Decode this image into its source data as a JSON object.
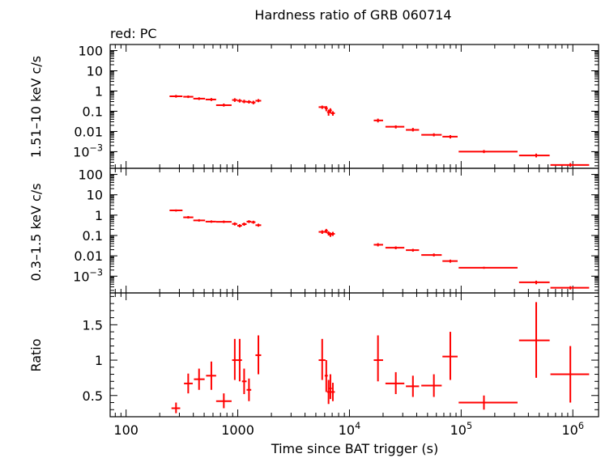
{
  "chart_data": {
    "type": "scatter",
    "title": "Hardness ratio of GRB 060714",
    "subtitle": "red: PC",
    "xlabel": "Time since BAT trigger (s)",
    "xscale": "log",
    "xlim": [
      72,
      1700000
    ],
    "x_ticks": [
      {
        "v": 100,
        "label": "100"
      },
      {
        "v": 1000,
        "label": "1000"
      },
      {
        "v": 10000,
        "label": "10",
        "exp": "4"
      },
      {
        "v": 100000,
        "label": "10",
        "exp": "5"
      },
      {
        "v": 1000000,
        "label": "10",
        "exp": "6"
      }
    ],
    "color": "#ff0000",
    "panels": [
      {
        "ylabel": "1.51–10 keV c/s",
        "yscale": "log",
        "ylim": [
          0.00015,
          200
        ],
        "y_ticks": [
          {
            "v": 100,
            "label": "100"
          },
          {
            "v": 10,
            "label": "10"
          },
          {
            "v": 1,
            "label": "1"
          },
          {
            "v": 0.1,
            "label": "0.1"
          },
          {
            "v": 0.01,
            "label": "0.01"
          },
          {
            "v": 0.001,
            "label": "10",
            "exp": "−3"
          }
        ],
        "points": [
          {
            "x": 280,
            "xlo": 245,
            "xhi": 320,
            "y": 0.55,
            "ylo": 0.47,
            "yhi": 0.64
          },
          {
            "x": 360,
            "xlo": 325,
            "xhi": 400,
            "y": 0.52,
            "ylo": 0.45,
            "yhi": 0.6
          },
          {
            "x": 450,
            "xlo": 400,
            "xhi": 510,
            "y": 0.42,
            "ylo": 0.36,
            "yhi": 0.49
          },
          {
            "x": 580,
            "xlo": 515,
            "xhi": 640,
            "y": 0.38,
            "ylo": 0.32,
            "yhi": 0.45
          },
          {
            "x": 750,
            "xlo": 640,
            "xhi": 880,
            "y": 0.2,
            "ylo": 0.17,
            "yhi": 0.24
          },
          {
            "x": 940,
            "xlo": 890,
            "xhi": 990,
            "y": 0.36,
            "ylo": 0.29,
            "yhi": 0.44
          },
          {
            "x": 1040,
            "xlo": 990,
            "xhi": 1090,
            "y": 0.33,
            "ylo": 0.27,
            "yhi": 0.4
          },
          {
            "x": 1140,
            "xlo": 1090,
            "xhi": 1200,
            "y": 0.3,
            "ylo": 0.25,
            "yhi": 0.37
          },
          {
            "x": 1260,
            "xlo": 1200,
            "xhi": 1320,
            "y": 0.29,
            "ylo": 0.24,
            "yhi": 0.35
          },
          {
            "x": 1380,
            "xlo": 1320,
            "xhi": 1440,
            "y": 0.27,
            "ylo": 0.22,
            "yhi": 0.33
          },
          {
            "x": 1530,
            "xlo": 1440,
            "xhi": 1620,
            "y": 0.33,
            "ylo": 0.28,
            "yhi": 0.4
          },
          {
            "x": 5700,
            "xlo": 5300,
            "xhi": 6100,
            "y": 0.16,
            "ylo": 0.13,
            "yhi": 0.19
          },
          {
            "x": 6200,
            "xlo": 6000,
            "xhi": 6400,
            "y": 0.14,
            "ylo": 0.1,
            "yhi": 0.18
          },
          {
            "x": 6500,
            "xlo": 6300,
            "xhi": 6700,
            "y": 0.09,
            "ylo": 0.06,
            "yhi": 0.12
          },
          {
            "x": 6750,
            "xlo": 6550,
            "xhi": 6950,
            "y": 0.11,
            "ylo": 0.08,
            "yhi": 0.14
          },
          {
            "x": 7100,
            "xlo": 6800,
            "xhi": 7400,
            "y": 0.08,
            "ylo": 0.06,
            "yhi": 0.1
          },
          {
            "x": 18000,
            "xlo": 16500,
            "xhi": 20000,
            "y": 0.035,
            "ylo": 0.028,
            "yhi": 0.043
          },
          {
            "x": 26000,
            "xlo": 21000,
            "xhi": 31000,
            "y": 0.017,
            "ylo": 0.014,
            "yhi": 0.02
          },
          {
            "x": 37000,
            "xlo": 32000,
            "xhi": 42000,
            "y": 0.012,
            "ylo": 0.01,
            "yhi": 0.015
          },
          {
            "x": 57000,
            "xlo": 44000,
            "xhi": 67000,
            "y": 0.0068,
            "ylo": 0.0057,
            "yhi": 0.0081
          },
          {
            "x": 80000,
            "xlo": 68000,
            "xhi": 93000,
            "y": 0.0055,
            "ylo": 0.0045,
            "yhi": 0.0066
          },
          {
            "x": 160000,
            "xlo": 95000,
            "xhi": 320000,
            "y": 0.001,
            "ylo": 0.00085,
            "yhi": 0.0012
          },
          {
            "x": 470000,
            "xlo": 330000,
            "xhi": 620000,
            "y": 0.00065,
            "ylo": 0.00052,
            "yhi": 0.0008
          },
          {
            "x": 950000,
            "xlo": 630000,
            "xhi": 1400000,
            "y": 0.00022,
            "ylo": 0.00018,
            "yhi": 0.00027
          }
        ]
      },
      {
        "ylabel": "0.3–1.5 keV c/s",
        "yscale": "log",
        "ylim": [
          0.00015,
          200
        ],
        "y_ticks": [
          {
            "v": 100,
            "label": "100"
          },
          {
            "v": 10,
            "label": "10"
          },
          {
            "v": 1,
            "label": "1"
          },
          {
            "v": 0.1,
            "label": "0.1"
          },
          {
            "v": 0.01,
            "label": "0.01"
          },
          {
            "v": 0.001,
            "label": "10",
            "exp": "−3"
          }
        ],
        "points": [
          {
            "x": 280,
            "xlo": 245,
            "xhi": 320,
            "y": 1.7,
            "ylo": 1.5,
            "yhi": 1.9
          },
          {
            "x": 360,
            "xlo": 325,
            "xhi": 400,
            "y": 0.78,
            "ylo": 0.68,
            "yhi": 0.9
          },
          {
            "x": 450,
            "xlo": 400,
            "xhi": 510,
            "y": 0.55,
            "ylo": 0.48,
            "yhi": 0.63
          },
          {
            "x": 580,
            "xlo": 515,
            "xhi": 640,
            "y": 0.48,
            "ylo": 0.42,
            "yhi": 0.55
          },
          {
            "x": 750,
            "xlo": 640,
            "xhi": 880,
            "y": 0.47,
            "ylo": 0.41,
            "yhi": 0.54
          },
          {
            "x": 940,
            "xlo": 890,
            "xhi": 990,
            "y": 0.37,
            "ylo": 0.31,
            "yhi": 0.44
          },
          {
            "x": 1040,
            "xlo": 990,
            "xhi": 1090,
            "y": 0.3,
            "ylo": 0.25,
            "yhi": 0.36
          },
          {
            "x": 1140,
            "xlo": 1090,
            "xhi": 1200,
            "y": 0.36,
            "ylo": 0.3,
            "yhi": 0.43
          },
          {
            "x": 1260,
            "xlo": 1200,
            "xhi": 1320,
            "y": 0.48,
            "ylo": 0.41,
            "yhi": 0.56
          },
          {
            "x": 1380,
            "xlo": 1320,
            "xhi": 1440,
            "y": 0.45,
            "ylo": 0.38,
            "yhi": 0.53
          },
          {
            "x": 1530,
            "xlo": 1440,
            "xhi": 1620,
            "y": 0.32,
            "ylo": 0.27,
            "yhi": 0.38
          },
          {
            "x": 5700,
            "xlo": 5300,
            "xhi": 6100,
            "y": 0.15,
            "ylo": 0.12,
            "yhi": 0.18
          },
          {
            "x": 6200,
            "xlo": 6000,
            "xhi": 6400,
            "y": 0.17,
            "ylo": 0.13,
            "yhi": 0.21
          },
          {
            "x": 6500,
            "xlo": 6300,
            "xhi": 6700,
            "y": 0.13,
            "ylo": 0.1,
            "yhi": 0.16
          },
          {
            "x": 6750,
            "xlo": 6550,
            "xhi": 6950,
            "y": 0.11,
            "ylo": 0.085,
            "yhi": 0.14
          },
          {
            "x": 7100,
            "xlo": 6800,
            "xhi": 7400,
            "y": 0.12,
            "ylo": 0.095,
            "yhi": 0.15
          },
          {
            "x": 18000,
            "xlo": 16500,
            "xhi": 20000,
            "y": 0.035,
            "ylo": 0.029,
            "yhi": 0.042
          },
          {
            "x": 26000,
            "xlo": 21000,
            "xhi": 31000,
            "y": 0.025,
            "ylo": 0.021,
            "yhi": 0.029
          },
          {
            "x": 37000,
            "xlo": 32000,
            "xhi": 42000,
            "y": 0.019,
            "ylo": 0.016,
            "yhi": 0.022
          },
          {
            "x": 57000,
            "xlo": 44000,
            "xhi": 67000,
            "y": 0.011,
            "ylo": 0.0093,
            "yhi": 0.013
          },
          {
            "x": 80000,
            "xlo": 68000,
            "xhi": 93000,
            "y": 0.0055,
            "ylo": 0.0046,
            "yhi": 0.0065
          },
          {
            "x": 160000,
            "xlo": 95000,
            "xhi": 320000,
            "y": 0.0026,
            "ylo": 0.0023,
            "yhi": 0.0029
          },
          {
            "x": 470000,
            "xlo": 330000,
            "xhi": 620000,
            "y": 0.0005,
            "ylo": 0.0004,
            "yhi": 0.0006
          },
          {
            "x": 950000,
            "xlo": 630000,
            "xhi": 1400000,
            "y": 0.00027,
            "ylo": 0.00022,
            "yhi": 0.00032
          }
        ]
      },
      {
        "ylabel": "Ratio",
        "yscale": "linear",
        "ylim": [
          0.2,
          1.95
        ],
        "y_ticks": [
          {
            "v": 0.5,
            "label": "0.5"
          },
          {
            "v": 1,
            "label": "1"
          },
          {
            "v": 1.5,
            "label": "1.5"
          }
        ],
        "points": [
          {
            "x": 280,
            "xlo": 255,
            "xhi": 305,
            "y": 0.32,
            "ylo": 0.25,
            "yhi": 0.4
          },
          {
            "x": 360,
            "xlo": 330,
            "xhi": 395,
            "y": 0.67,
            "ylo": 0.53,
            "yhi": 0.81
          },
          {
            "x": 450,
            "xlo": 405,
            "xhi": 505,
            "y": 0.73,
            "ylo": 0.58,
            "yhi": 0.88
          },
          {
            "x": 580,
            "xlo": 520,
            "xhi": 640,
            "y": 0.78,
            "ylo": 0.58,
            "yhi": 0.98
          },
          {
            "x": 750,
            "xlo": 640,
            "xhi": 880,
            "y": 0.42,
            "ylo": 0.32,
            "yhi": 0.53
          },
          {
            "x": 940,
            "xlo": 890,
            "xhi": 990,
            "y": 1.0,
            "ylo": 0.72,
            "yhi": 1.3
          },
          {
            "x": 1040,
            "xlo": 990,
            "xhi": 1090,
            "y": 1.0,
            "ylo": 0.7,
            "yhi": 1.3
          },
          {
            "x": 1140,
            "xlo": 1090,
            "xhi": 1200,
            "y": 0.7,
            "ylo": 0.52,
            "yhi": 0.88
          },
          {
            "x": 1260,
            "xlo": 1200,
            "xhi": 1320,
            "y": 0.58,
            "ylo": 0.42,
            "yhi": 0.74
          },
          {
            "x": 1530,
            "xlo": 1440,
            "xhi": 1620,
            "y": 1.07,
            "ylo": 0.8,
            "yhi": 1.35
          },
          {
            "x": 5700,
            "xlo": 5300,
            "xhi": 6100,
            "y": 1.0,
            "ylo": 0.72,
            "yhi": 1.3
          },
          {
            "x": 6200,
            "xlo": 6000,
            "xhi": 6400,
            "y": 0.78,
            "ylo": 0.55,
            "yhi": 1.0
          },
          {
            "x": 6500,
            "xlo": 6300,
            "xhi": 6700,
            "y": 0.55,
            "ylo": 0.38,
            "yhi": 0.72
          },
          {
            "x": 6750,
            "xlo": 6550,
            "xhi": 6950,
            "y": 0.6,
            "ylo": 0.45,
            "yhi": 0.8
          },
          {
            "x": 7100,
            "xlo": 6800,
            "xhi": 7400,
            "y": 0.55,
            "ylo": 0.42,
            "yhi": 0.68
          },
          {
            "x": 18000,
            "xlo": 16500,
            "xhi": 20000,
            "y": 1.0,
            "ylo": 0.7,
            "yhi": 1.35
          },
          {
            "x": 26000,
            "xlo": 21000,
            "xhi": 31000,
            "y": 0.67,
            "ylo": 0.52,
            "yhi": 0.83
          },
          {
            "x": 37000,
            "xlo": 32000,
            "xhi": 42000,
            "y": 0.63,
            "ylo": 0.48,
            "yhi": 0.78
          },
          {
            "x": 57000,
            "xlo": 44000,
            "xhi": 67000,
            "y": 0.64,
            "ylo": 0.48,
            "yhi": 0.8
          },
          {
            "x": 80000,
            "xlo": 68000,
            "xhi": 93000,
            "y": 1.05,
            "ylo": 0.72,
            "yhi": 1.4
          },
          {
            "x": 160000,
            "xlo": 95000,
            "xhi": 320000,
            "y": 0.4,
            "ylo": 0.3,
            "yhi": 0.5
          },
          {
            "x": 470000,
            "xlo": 330000,
            "xhi": 620000,
            "y": 1.28,
            "ylo": 0.75,
            "yhi": 1.82
          },
          {
            "x": 950000,
            "xlo": 630000,
            "xhi": 1400000,
            "y": 0.8,
            "ylo": 0.4,
            "yhi": 1.2
          }
        ]
      }
    ]
  }
}
